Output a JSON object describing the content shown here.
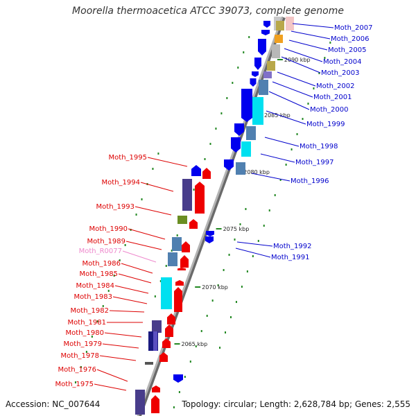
{
  "title": "Moorella thermoacetica ATCC 39073, complete genome",
  "footer": {
    "accession": "Accession: NC_007644",
    "summary": "Topology: circular; Length: 2,628,784 bp; Genes: 2,555"
  },
  "colors": {
    "backbone": "#8c8c8c",
    "plus_label": "#0000cc",
    "minus_label": "#dd0000",
    "rna_label": "#ee88cc",
    "tick": "#228822",
    "arrow_blue": "#0000ee",
    "arrow_red": "#ee0000"
  },
  "ruler": [
    {
      "label": "2090 kbp"
    },
    {
      "label": "2085 kbp"
    },
    {
      "label": "2080 kbp"
    },
    {
      "label": "2075 kbp"
    },
    {
      "label": "2070 kbp"
    },
    {
      "label": "2065 kbp"
    }
  ],
  "genes_plus": [
    {
      "label": "Moth_2007"
    },
    {
      "label": "Moth_2006"
    },
    {
      "label": "Moth_2005"
    },
    {
      "label": "Moth_2004"
    },
    {
      "label": "Moth_2003"
    },
    {
      "label": "Moth_2002"
    },
    {
      "label": "Moth_2001"
    },
    {
      "label": "Moth_2000"
    },
    {
      "label": "Moth_1999"
    },
    {
      "label": "Moth_1998"
    },
    {
      "label": "Moth_1997"
    },
    {
      "label": "Moth_1996"
    },
    {
      "label": "Moth_1992"
    },
    {
      "label": "Moth_1991"
    }
  ],
  "genes_minus": [
    {
      "label": "Moth_1995"
    },
    {
      "label": "Moth_1994"
    },
    {
      "label": "Moth_1993"
    },
    {
      "label": "Moth_1990"
    },
    {
      "label": "Moth_1989"
    },
    {
      "label": "Moth_R0077",
      "rna": true
    },
    {
      "label": "Moth_1986"
    },
    {
      "label": "Moth_1985"
    },
    {
      "label": "Moth_1984"
    },
    {
      "label": "Moth_1983"
    },
    {
      "label": "Moth_1982"
    },
    {
      "label": "Moth_1981"
    },
    {
      "label": "Moth_1980"
    },
    {
      "label": "Moth_1979"
    },
    {
      "label": "Moth_1978"
    },
    {
      "label": "Moth_1976"
    },
    {
      "label": "Moth_1975"
    }
  ]
}
